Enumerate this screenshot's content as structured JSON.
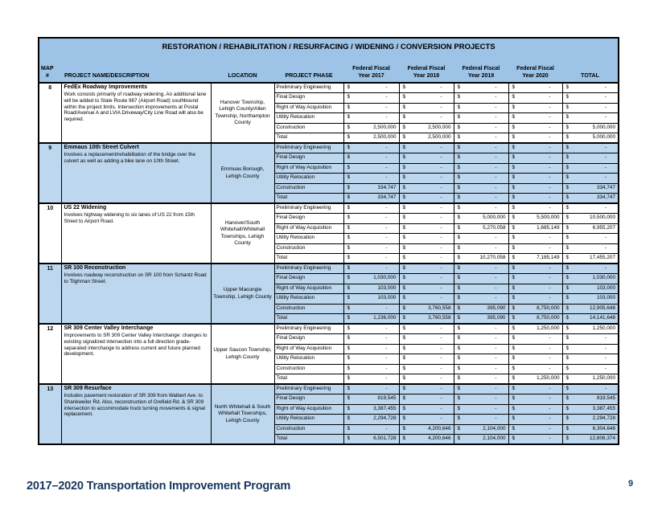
{
  "table": {
    "title": "RESTORATION / REHABILITATION / RESURFACING / WIDENING / CONVERSION PROJECTS",
    "headers": {
      "map_line1": "MAP",
      "map_line2": "#",
      "name": "PROJECT NAME/DESCRIPTION",
      "location": "LOCATION",
      "phase": "PROJECT PHASE",
      "fiscal_years": [
        {
          "line1": "Federal Fiscal",
          "line2": "Year 2017"
        },
        {
          "line1": "Federal Fiscal",
          "line2": "Year 2018"
        },
        {
          "line1": "Federal Fiscal",
          "line2": "Year 2019"
        },
        {
          "line1": "Federal Fiscal",
          "line2": "Year 2020"
        }
      ],
      "total": "TOTAL"
    },
    "currency_symbol": "$",
    "phase_labels": [
      "Preliminary Engineering",
      "Final Design",
      "Right of Way Acquisition",
      "Utility Relocation",
      "Construction",
      "Total"
    ],
    "projects": [
      {
        "map": "8",
        "name": "FedEx Roadway Improvements",
        "description": "Work consists primarily of roadway widening. An additional lane will be added to State Route 987 (Airport Road) southbound within the project limits. Intersection improvements at Postal Road/Avenue A and LVIA Driveway/City Line Road will also be required.",
        "location": "Hanover Township, Lehigh County/Allen Township, Northampton County",
        "amounts": [
          [
            "-",
            "-",
            "-",
            "-",
            "-"
          ],
          [
            "-",
            "-",
            "-",
            "-",
            "-"
          ],
          [
            "-",
            "-",
            "-",
            "-",
            "-"
          ],
          [
            "-",
            "-",
            "-",
            "-",
            "-"
          ],
          [
            "2,500,000",
            "2,500,000",
            "-",
            "-",
            "5,000,000"
          ],
          [
            "2,500,000",
            "2,500,000",
            "-",
            "-",
            "5,000,000"
          ]
        ]
      },
      {
        "map": "9",
        "name": "Emmaus 10th Street Culvert",
        "description": "Involves a replacement/rehabilitation of the bridge over the culvert as well as adding a bike lane on 10th Street.",
        "location": "Emmuas Borough, Lehigh County",
        "amounts": [
          [
            "-",
            "-",
            "-",
            "-",
            "-"
          ],
          [
            "-",
            "-",
            "-",
            "-",
            "-"
          ],
          [
            "-",
            "-",
            "-",
            "-",
            "-"
          ],
          [
            "-",
            "-",
            "-",
            "-",
            "-"
          ],
          [
            "334,747",
            "-",
            "-",
            "-",
            "334,747"
          ],
          [
            "334,747",
            "-",
            "-",
            "-",
            "334,747"
          ]
        ]
      },
      {
        "map": "10",
        "name": "US 22 Widening",
        "description": "Involves highway widening to six lanes of US 22 from 15th Street to Airport Road.",
        "location": "Hanover/South Whitehall/Whitehall Townships, Lehigh County",
        "amounts": [
          [
            "-",
            "-",
            "-",
            "-",
            "-"
          ],
          [
            "-",
            "-",
            "5,000,000",
            "5,500,000",
            "10,500,000"
          ],
          [
            "-",
            "-",
            "5,270,058",
            "1,685,149",
            "6,955,207"
          ],
          [
            "-",
            "-",
            "-",
            "-",
            "-"
          ],
          [
            "-",
            "-",
            "-",
            "-",
            "-"
          ],
          [
            "-",
            "-",
            "10,270,058",
            "7,185,149",
            "17,455,207"
          ]
        ]
      },
      {
        "map": "11",
        "name": "SR 100 Reconstruction",
        "description": "Involves roadway reconstruction on SR 100 from Schantz Road to Tilghman Street.",
        "location": "Upper Macungie Township, Lehigh County",
        "amounts": [
          [
            "-",
            "-",
            "-",
            "-",
            "-"
          ],
          [
            "1,030,000",
            "-",
            "-",
            "-",
            "1,030,000"
          ],
          [
            "103,000",
            "-",
            "-",
            "-",
            "103,000"
          ],
          [
            "103,000",
            "-",
            "-",
            "-",
            "103,000"
          ],
          [
            "-",
            "3,760,558",
            "395,090",
            "8,750,000",
            "12,905,648"
          ],
          [
            "1,236,000",
            "3,760,558",
            "395,090",
            "8,750,000",
            "14,141,648"
          ]
        ]
      },
      {
        "map": "12",
        "name": "SR 309 Center Valley Interchange",
        "description": "Improvements to SR 309 Center Valley Interchange: changes to existing signalized intersection into a full direction grade-separated interchange to address current and future planned development.",
        "location": "Upper Saucon Township, Lehigh County",
        "amounts": [
          [
            "-",
            "-",
            "-",
            "1,250,000",
            "1,250,000"
          ],
          [
            "-",
            "-",
            "-",
            "-",
            "-"
          ],
          [
            "-",
            "-",
            "-",
            "-",
            "-"
          ],
          [
            "-",
            "-",
            "-",
            "-",
            "-"
          ],
          [
            "-",
            "-",
            "-",
            "-",
            "-"
          ],
          [
            "-",
            "-",
            "-",
            "1,250,000",
            "1,250,000"
          ]
        ]
      },
      {
        "map": "13",
        "name": "SR 309 Resurface",
        "description": "Includes pavement restoration of SR 309 from Walbert Ave. to Shankweiler Rd. Also, reconstruction of Orefield Rd. & SR 309 intersection to accommodate truck turning movements & signal replacement.",
        "location": "North Whitehall & South Whitehall Townships, Lehigh County",
        "amounts": [
          [
            "-",
            "-",
            "-",
            "-",
            "-"
          ],
          [
            "819,545",
            "-",
            "-",
            "-",
            "819,545"
          ],
          [
            "3,387,455",
            "-",
            "-",
            "-",
            "3,387,455"
          ],
          [
            "2,294,728",
            "-",
            "-",
            "-",
            "2,294,728"
          ],
          [
            "-",
            "4,200,646",
            "2,104,000",
            "-",
            "6,304,646"
          ],
          [
            "6,501,728",
            "4,200,646",
            "2,104,000",
            "-",
            "12,806,374"
          ]
        ]
      }
    ]
  },
  "footer": {
    "title": "2017–2020 Transportation Improvement Program",
    "page_number": "9"
  },
  "colors": {
    "header_blue": "#9DC3E6",
    "row_shade_blue": "#BDD7EE",
    "footer_navy": "#17375E"
  }
}
